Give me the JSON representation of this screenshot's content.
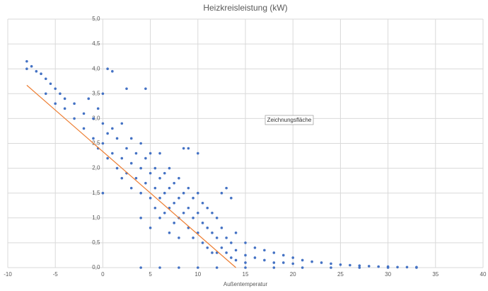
{
  "chart_data": {
    "type": "scatter",
    "title": "Heizkreisleistung (kW)",
    "x_label": "Außentemperatur",
    "annotation": "Zeichnungsfläche",
    "color": "#4472c4",
    "grid": true,
    "xlim": [
      -10,
      40
    ],
    "xticks": [
      -10,
      -5,
      0,
      5,
      10,
      15,
      20,
      25,
      30,
      35,
      40
    ],
    "ylim": [
      0,
      5
    ],
    "yticks": [
      {
        "value": 0,
        "label": "0,0"
      },
      {
        "value": 0.5,
        "label": "0,5"
      },
      {
        "value": 1,
        "label": "1,0"
      },
      {
        "value": 1.5,
        "label": "1,5"
      },
      {
        "value": 2,
        "label": "2,0"
      },
      {
        "value": 2.5,
        "label": "2,5"
      },
      {
        "value": 3,
        "label": "3,0"
      },
      {
        "value": 3.5,
        "label": "3,5"
      },
      {
        "value": 4,
        "label": "4,0"
      },
      {
        "value": 4.5,
        "label": "4,5"
      },
      {
        "value": 5,
        "label": "5,0"
      }
    ],
    "x": [
      -8,
      -8,
      -7.5,
      -7,
      -6.5,
      -6,
      -5.5,
      -5,
      -4.5,
      -4,
      -6,
      -5,
      -4,
      -3,
      -3,
      -2,
      -2,
      -1.5,
      -1,
      -1,
      -0.5,
      -0.5,
      0,
      0,
      0,
      0,
      0.5,
      0.5,
      0.5,
      1,
      1,
      1,
      1.5,
      1.5,
      2,
      2,
      2,
      2.5,
      2.5,
      2.5,
      3,
      3,
      3,
      3.5,
      3.5,
      4,
      4,
      4,
      4,
      4.5,
      4.5,
      4.5,
      5,
      5,
      5,
      5,
      5.5,
      5.5,
      5.5,
      6,
      6,
      6,
      6,
      6.5,
      6.5,
      6.5,
      7,
      7,
      7,
      7,
      7.5,
      7.5,
      7.5,
      8,
      8,
      8,
      8,
      8.5,
      8.5,
      8.5,
      9,
      9,
      9,
      9,
      9.5,
      9.5,
      9.5,
      10,
      10,
      10,
      10,
      10.5,
      10.5,
      10.5,
      11,
      11,
      11,
      11.5,
      11.5,
      11.5,
      12,
      12,
      12,
      12.5,
      12.5,
      12.5,
      13,
      13,
      13,
      13.5,
      13.5,
      13.5,
      14,
      14,
      14,
      15,
      15,
      15,
      16,
      16,
      17,
      17,
      18,
      18,
      19,
      19,
      20,
      20,
      21,
      22,
      23,
      24,
      25,
      26,
      27,
      28,
      29,
      30,
      31,
      32,
      33,
      4,
      6,
      8,
      10,
      12,
      15,
      18,
      21,
      24,
      27,
      30,
      33
    ],
    "y": [
      4.15,
      4.0,
      4.05,
      3.95,
      3.9,
      3.8,
      3.7,
      3.6,
      3.5,
      3.4,
      3.5,
      3.3,
      3.2,
      3.3,
      3.0,
      3.1,
      2.8,
      3.4,
      3.0,
      2.6,
      3.2,
      2.4,
      2.9,
      2.5,
      3.5,
      1.5,
      2.7,
      2.2,
      4.0,
      3.95,
      2.8,
      2.3,
      2.6,
      2.0,
      2.9,
      2.2,
      1.8,
      3.6,
      2.4,
      1.9,
      2.6,
      2.1,
      1.6,
      2.3,
      1.8,
      2.5,
      2.0,
      1.5,
      1.0,
      3.6,
      2.2,
      1.7,
      2.3,
      1.9,
      1.4,
      0.8,
      2.0,
      1.6,
      1.2,
      2.3,
      1.8,
      1.4,
      1.0,
      1.9,
      1.5,
      1.1,
      2.0,
      1.6,
      1.2,
      0.7,
      1.7,
      1.3,
      0.9,
      1.8,
      1.4,
      1.0,
      0.6,
      2.4,
      1.5,
      1.1,
      2.4,
      1.6,
      1.2,
      0.8,
      1.4,
      1.0,
      0.6,
      2.3,
      1.5,
      1.1,
      0.7,
      1.3,
      0.9,
      0.5,
      1.2,
      0.8,
      0.4,
      1.1,
      0.7,
      0.3,
      1.0,
      0.6,
      0.3,
      1.5,
      0.8,
      0.4,
      1.6,
      0.6,
      0.3,
      1.4,
      0.5,
      0.2,
      0.7,
      0.35,
      0.15,
      0.5,
      0.25,
      0.1,
      0.4,
      0.2,
      0.35,
      0.15,
      0.3,
      0.1,
      0.25,
      0.1,
      0.2,
      0.08,
      0.15,
      0.12,
      0.1,
      0.08,
      0.06,
      0.05,
      0.04,
      0.03,
      0.02,
      0.02,
      0.01,
      0.01,
      0.01,
      0,
      0,
      0,
      0,
      0,
      0,
      0,
      0,
      0,
      0,
      0,
      0
    ],
    "trendline": {
      "x": [
        -8,
        14
      ],
      "y": [
        3.67,
        0
      ],
      "color": "#ed7d31"
    }
  }
}
